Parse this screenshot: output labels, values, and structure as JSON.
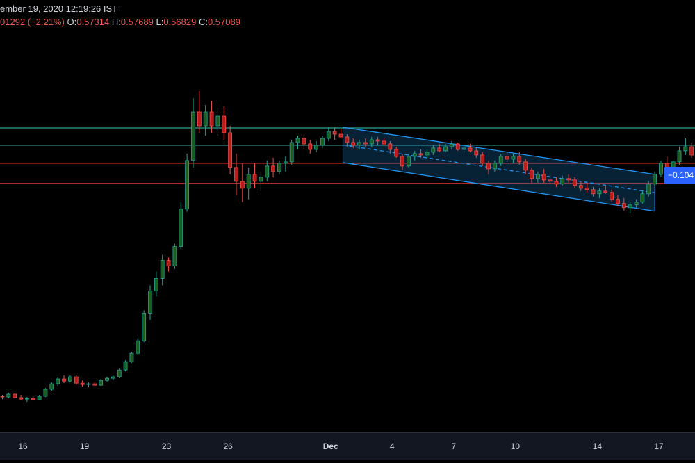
{
  "header": {
    "datetime": "ember 19, 2020 12:19:26 IST",
    "change": "01292 (−2.21%)",
    "open_label": "O:",
    "open_value": "0.57314",
    "high_label": "H:",
    "high_value": "0.57689",
    "low_label": "L:",
    "low_value": "0.56829",
    "close_label": "C:",
    "close_value": "0.57089"
  },
  "price_tag": "−0.104",
  "colors": {
    "bull": "#26a69a",
    "bull_body": "#1b5e20",
    "bear": "#ef5350",
    "bear_body": "#b71c1c",
    "teal_line": "#26a69a",
    "red_line": "#e53935",
    "channel": "#2196f3",
    "axis_text": "#d1d4dc"
  },
  "chart_data": {
    "type": "candlestick",
    "x_axis": {
      "ticks": [
        {
          "label": "16",
          "day": 16
        },
        {
          "label": "19",
          "day": 19
        },
        {
          "label": "23",
          "day": 23
        },
        {
          "label": "26",
          "day": 26
        },
        {
          "label": "Dec",
          "day": 31
        },
        {
          "label": "4",
          "day": 34
        },
        {
          "label": "7",
          "day": 37
        },
        {
          "label": "10",
          "day": 40
        },
        {
          "label": "14",
          "day": 44
        },
        {
          "label": "17",
          "day": 47
        }
      ],
      "range": [
        15,
        49
      ]
    },
    "y_range": [
      0.4,
      0.66
    ],
    "horizontal_levels": [
      {
        "price": 0.6035,
        "color": "teal"
      },
      {
        "price": 0.591,
        "color": "teal"
      },
      {
        "price": 0.578,
        "color": "red"
      },
      {
        "price": 0.5635,
        "color": "red"
      }
    ],
    "channel": {
      "start_day": 31.6,
      "end_day": 46.8,
      "upper_start": 0.604,
      "upper_end": 0.57,
      "lower_start": 0.5785,
      "lower_end": 0.5435
    },
    "candles": [
      [
        15.0,
        0.41,
        0.411,
        0.408,
        0.4095
      ],
      [
        15.3,
        0.4095,
        0.4125,
        0.4085,
        0.4115
      ],
      [
        15.6,
        0.4115,
        0.412,
        0.4085,
        0.409
      ],
      [
        15.9,
        0.409,
        0.411,
        0.407,
        0.408
      ],
      [
        16.2,
        0.408,
        0.4095,
        0.406,
        0.4085
      ],
      [
        16.5,
        0.4085,
        0.41,
        0.407,
        0.4075
      ],
      [
        16.8,
        0.4075,
        0.411,
        0.407,
        0.41
      ],
      [
        17.1,
        0.41,
        0.416,
        0.4095,
        0.415
      ],
      [
        17.4,
        0.415,
        0.42,
        0.414,
        0.419
      ],
      [
        17.7,
        0.419,
        0.4235,
        0.4175,
        0.4225
      ],
      [
        18.0,
        0.4225,
        0.425,
        0.4195,
        0.421
      ],
      [
        18.3,
        0.421,
        0.425,
        0.42,
        0.424
      ],
      [
        18.6,
        0.424,
        0.4255,
        0.418,
        0.4195
      ],
      [
        18.9,
        0.4195,
        0.4215,
        0.417,
        0.4185
      ],
      [
        19.2,
        0.4185,
        0.42,
        0.4165,
        0.419
      ],
      [
        19.5,
        0.419,
        0.4205,
        0.4175,
        0.418
      ],
      [
        19.8,
        0.418,
        0.4225,
        0.4175,
        0.4215
      ],
      [
        20.1,
        0.4215,
        0.424,
        0.4205,
        0.423
      ],
      [
        20.4,
        0.423,
        0.425,
        0.4215,
        0.424
      ],
      [
        20.7,
        0.424,
        0.43,
        0.423,
        0.429
      ],
      [
        21.0,
        0.429,
        0.436,
        0.428,
        0.435
      ],
      [
        21.3,
        0.435,
        0.442,
        0.434,
        0.441
      ],
      [
        21.6,
        0.441,
        0.452,
        0.44,
        0.45
      ],
      [
        21.9,
        0.45,
        0.472,
        0.449,
        0.47
      ],
      [
        22.2,
        0.47,
        0.49,
        0.465,
        0.486
      ],
      [
        22.5,
        0.486,
        0.5,
        0.482,
        0.495
      ],
      [
        22.8,
        0.495,
        0.512,
        0.49,
        0.508
      ],
      [
        23.1,
        0.508,
        0.51,
        0.5,
        0.504
      ],
      [
        23.4,
        0.504,
        0.52,
        0.502,
        0.518
      ],
      [
        23.7,
        0.518,
        0.55,
        0.516,
        0.545
      ],
      [
        24.0,
        0.545,
        0.585,
        0.543,
        0.58
      ],
      [
        24.3,
        0.58,
        0.625,
        0.575,
        0.615
      ],
      [
        24.6,
        0.615,
        0.63,
        0.6,
        0.605
      ],
      [
        24.9,
        0.605,
        0.62,
        0.598,
        0.615
      ],
      [
        25.2,
        0.615,
        0.623,
        0.6,
        0.605
      ],
      [
        25.5,
        0.605,
        0.618,
        0.598,
        0.612
      ],
      [
        25.8,
        0.612,
        0.619,
        0.595,
        0.6
      ],
      [
        26.1,
        0.6,
        0.605,
        0.57,
        0.575
      ],
      [
        26.4,
        0.575,
        0.585,
        0.555,
        0.565
      ],
      [
        26.7,
        0.565,
        0.578,
        0.55,
        0.56
      ],
      [
        27.0,
        0.56,
        0.575,
        0.552,
        0.57
      ],
      [
        27.3,
        0.57,
        0.578,
        0.56,
        0.565
      ],
      [
        27.6,
        0.565,
        0.572,
        0.558,
        0.568
      ],
      [
        27.9,
        0.568,
        0.58,
        0.565,
        0.576
      ],
      [
        28.2,
        0.576,
        0.582,
        0.568,
        0.572
      ],
      [
        28.5,
        0.572,
        0.58,
        0.57,
        0.578
      ],
      [
        28.8,
        0.578,
        0.583,
        0.572,
        0.579
      ],
      [
        29.1,
        0.579,
        0.595,
        0.577,
        0.593
      ],
      [
        29.4,
        0.593,
        0.598,
        0.588,
        0.596
      ],
      [
        29.7,
        0.596,
        0.599,
        0.588,
        0.592
      ],
      [
        30.0,
        0.592,
        0.595,
        0.585,
        0.588
      ],
      [
        30.3,
        0.588,
        0.594,
        0.586,
        0.591
      ],
      [
        30.6,
        0.591,
        0.598,
        0.589,
        0.596
      ],
      [
        30.9,
        0.596,
        0.604,
        0.594,
        0.601
      ],
      [
        31.2,
        0.601,
        0.604,
        0.595,
        0.599
      ],
      [
        31.5,
        0.599,
        0.603,
        0.596,
        0.597
      ],
      [
        31.8,
        0.597,
        0.599,
        0.59,
        0.593
      ],
      [
        32.1,
        0.593,
        0.596,
        0.589,
        0.591
      ],
      [
        32.4,
        0.591,
        0.595,
        0.588,
        0.593
      ],
      [
        32.7,
        0.593,
        0.596,
        0.59,
        0.592
      ],
      [
        33.0,
        0.592,
        0.597,
        0.59,
        0.595
      ],
      [
        33.3,
        0.595,
        0.597,
        0.591,
        0.594
      ],
      [
        33.6,
        0.594,
        0.596,
        0.591,
        0.592
      ],
      [
        33.9,
        0.592,
        0.594,
        0.585,
        0.588
      ],
      [
        34.2,
        0.588,
        0.59,
        0.582,
        0.583
      ],
      [
        34.5,
        0.583,
        0.585,
        0.573,
        0.576
      ],
      [
        34.8,
        0.576,
        0.585,
        0.575,
        0.583
      ],
      [
        35.1,
        0.583,
        0.587,
        0.58,
        0.585
      ],
      [
        35.4,
        0.585,
        0.588,
        0.582,
        0.584
      ],
      [
        35.7,
        0.584,
        0.588,
        0.581,
        0.586
      ],
      [
        36.0,
        0.586,
        0.591,
        0.584,
        0.589
      ],
      [
        36.3,
        0.589,
        0.592,
        0.586,
        0.587
      ],
      [
        36.6,
        0.587,
        0.592,
        0.586,
        0.59
      ],
      [
        36.9,
        0.59,
        0.594,
        0.588,
        0.592
      ],
      [
        37.2,
        0.592,
        0.593,
        0.587,
        0.588
      ],
      [
        37.5,
        0.588,
        0.591,
        0.586,
        0.589
      ],
      [
        37.8,
        0.589,
        0.592,
        0.586,
        0.587
      ],
      [
        38.1,
        0.587,
        0.59,
        0.582,
        0.584
      ],
      [
        38.4,
        0.584,
        0.586,
        0.576,
        0.578
      ],
      [
        38.7,
        0.578,
        0.58,
        0.57,
        0.574
      ],
      [
        39.0,
        0.574,
        0.58,
        0.572,
        0.578
      ],
      [
        39.3,
        0.578,
        0.585,
        0.576,
        0.583
      ],
      [
        39.6,
        0.583,
        0.586,
        0.579,
        0.581
      ],
      [
        39.9,
        0.581,
        0.585,
        0.578,
        0.583
      ],
      [
        40.2,
        0.583,
        0.586,
        0.577,
        0.579
      ],
      [
        40.5,
        0.579,
        0.581,
        0.57,
        0.573
      ],
      [
        40.8,
        0.573,
        0.575,
        0.564,
        0.567
      ],
      [
        41.1,
        0.567,
        0.572,
        0.564,
        0.57
      ],
      [
        41.4,
        0.57,
        0.574,
        0.564,
        0.566
      ],
      [
        41.7,
        0.566,
        0.57,
        0.563,
        0.565
      ],
      [
        42.0,
        0.565,
        0.568,
        0.561,
        0.563
      ],
      [
        42.3,
        0.563,
        0.569,
        0.562,
        0.567
      ],
      [
        42.6,
        0.567,
        0.57,
        0.564,
        0.566
      ],
      [
        42.9,
        0.566,
        0.568,
        0.56,
        0.562
      ],
      [
        43.2,
        0.562,
        0.565,
        0.558,
        0.56
      ],
      [
        43.5,
        0.56,
        0.564,
        0.557,
        0.559
      ],
      [
        43.8,
        0.559,
        0.561,
        0.554,
        0.556
      ],
      [
        44.1,
        0.556,
        0.56,
        0.553,
        0.558
      ],
      [
        44.4,
        0.558,
        0.562,
        0.556,
        0.557
      ],
      [
        44.7,
        0.557,
        0.559,
        0.55,
        0.552
      ],
      [
        45.0,
        0.552,
        0.555,
        0.547,
        0.549
      ],
      [
        45.3,
        0.549,
        0.553,
        0.544,
        0.546
      ],
      [
        45.6,
        0.546,
        0.55,
        0.542,
        0.548
      ],
      [
        45.9,
        0.548,
        0.552,
        0.546,
        0.55
      ],
      [
        46.2,
        0.55,
        0.558,
        0.549,
        0.556
      ],
      [
        46.5,
        0.556,
        0.565,
        0.554,
        0.563
      ],
      [
        46.8,
        0.563,
        0.572,
        0.56,
        0.57
      ],
      [
        47.1,
        0.57,
        0.58,
        0.568,
        0.578
      ],
      [
        47.4,
        0.578,
        0.583,
        0.573,
        0.575
      ],
      [
        47.7,
        0.575,
        0.58,
        0.572,
        0.579
      ],
      [
        48.0,
        0.579,
        0.59,
        0.577,
        0.587
      ],
      [
        48.3,
        0.587,
        0.596,
        0.584,
        0.59
      ],
      [
        48.6,
        0.59,
        0.593,
        0.582,
        0.584
      ],
      [
        48.9,
        0.584,
        0.59,
        0.58,
        0.586
      ]
    ]
  }
}
